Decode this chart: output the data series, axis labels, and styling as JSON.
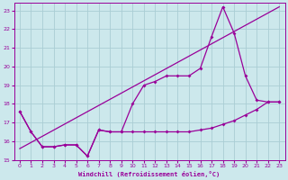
{
  "xlabel": "Windchill (Refroidissement éolien,°C)",
  "bg_color": "#cce8ec",
  "grid_color": "#aacdd4",
  "line_color": "#990099",
  "xlim": [
    -0.5,
    23.5
  ],
  "ylim": [
    15,
    23.4
  ],
  "yticks": [
    15,
    16,
    17,
    18,
    19,
    20,
    21,
    22,
    23
  ],
  "xticks": [
    0,
    1,
    2,
    3,
    4,
    5,
    6,
    7,
    8,
    9,
    10,
    11,
    12,
    13,
    14,
    15,
    16,
    17,
    18,
    19,
    20,
    21,
    22,
    23
  ],
  "line1_x": [
    0,
    1,
    2,
    3,
    4,
    5,
    6,
    7,
    8,
    9,
    10,
    11,
    12,
    13,
    14,
    15,
    16,
    17,
    18,
    19,
    20,
    21,
    22,
    23
  ],
  "line1_y": [
    17.6,
    16.5,
    15.7,
    15.7,
    15.8,
    15.8,
    15.2,
    16.6,
    16.5,
    16.5,
    18.0,
    19.0,
    19.2,
    19.5,
    19.5,
    19.5,
    19.9,
    21.6,
    23.2,
    21.8,
    19.5,
    18.2,
    18.1,
    18.1
  ],
  "line2_x": [
    0,
    1,
    2,
    3,
    4,
    5,
    6,
    7,
    8,
    9,
    10,
    11,
    12,
    13,
    14,
    15,
    16,
    17,
    18,
    19,
    20,
    21,
    22,
    23
  ],
  "line2_y": [
    17.6,
    16.5,
    15.7,
    15.7,
    15.8,
    15.8,
    15.2,
    16.6,
    16.5,
    16.5,
    16.5,
    16.5,
    16.5,
    16.5,
    16.5,
    16.5,
    16.6,
    16.7,
    16.9,
    17.1,
    17.4,
    17.7,
    18.1,
    18.1
  ],
  "line3_x": [
    0,
    23
  ],
  "line3_y": [
    15.6,
    23.2
  ]
}
